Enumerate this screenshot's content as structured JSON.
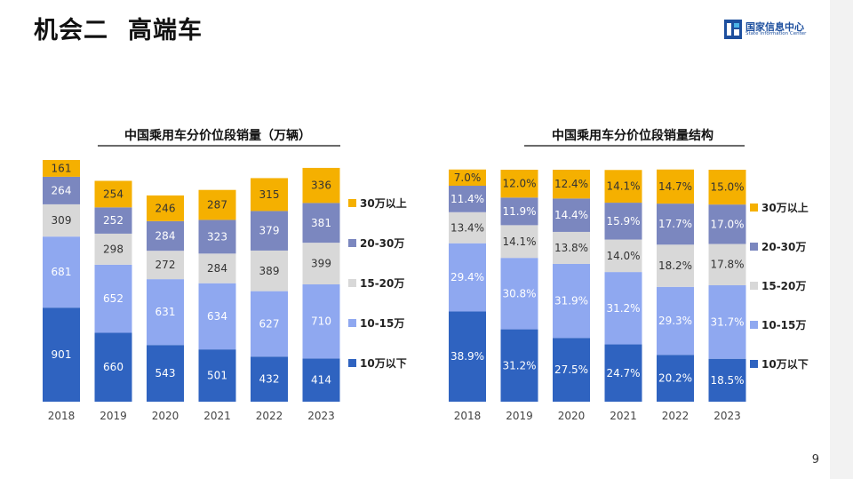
{
  "header": {
    "title_part1": "机会二",
    "title_part2": "高端车",
    "logo_org": "国家信息中心",
    "logo_org_en": "State Information Center",
    "page_number": "9"
  },
  "colors": {
    "10万以下": "#2f63c0",
    "10-15万": "#8fa8f0",
    "15-20万": "#d8d8d8",
    "20-30万": "#7b87bf",
    "30万以上": "#f5b000"
  },
  "chart_data": [
    {
      "type": "bar",
      "stacked": true,
      "title": "中国乘用车分价位段销量（万辆）",
      "categories": [
        "2018",
        "2019",
        "2020",
        "2021",
        "2022",
        "2023"
      ],
      "series": [
        {
          "name": "10万以下",
          "values": [
            901,
            660,
            543,
            501,
            432,
            414
          ],
          "labels": [
            "901",
            "660",
            "543",
            "501",
            "432",
            "414"
          ]
        },
        {
          "name": "10-15万",
          "values": [
            681,
            652,
            631,
            634,
            627,
            710
          ],
          "labels": [
            "681",
            "652",
            "631",
            "634",
            "627",
            "710"
          ]
        },
        {
          "name": "15-20万",
          "values": [
            309,
            298,
            272,
            284,
            389,
            399
          ],
          "labels": [
            "309",
            "298",
            "272",
            "284",
            "389",
            "399"
          ]
        },
        {
          "name": "20-30万",
          "values": [
            264,
            252,
            284,
            323,
            379,
            381
          ],
          "labels": [
            "264",
            "252",
            "284",
            "323",
            "379",
            "381"
          ]
        },
        {
          "name": "30万以上",
          "values": [
            161,
            254,
            246,
            287,
            315,
            336
          ],
          "labels": [
            "161",
            "254",
            "246",
            "287",
            "315",
            "336"
          ]
        }
      ],
      "legend": [
        "30万以上",
        "20-30万",
        "15-20万",
        "10-15万",
        "10万以下"
      ],
      "legend_position": "right",
      "ylim": [
        0,
        2316
      ]
    },
    {
      "type": "bar",
      "stacked": true,
      "title": "中国乘用车分价位段销量结构",
      "categories": [
        "2018",
        "2019",
        "2020",
        "2021",
        "2022",
        "2023"
      ],
      "series": [
        {
          "name": "10万以下",
          "values": [
            38.9,
            31.2,
            27.5,
            24.7,
            20.2,
            18.5
          ],
          "labels": [
            "38.9%",
            "31.2%",
            "27.5%",
            "24.7%",
            "20.2%",
            "18.5%"
          ]
        },
        {
          "name": "10-15万",
          "values": [
            29.4,
            30.8,
            31.9,
            31.2,
            29.3,
            31.7
          ],
          "labels": [
            "29.4%",
            "30.8%",
            "31.9%",
            "31.2%",
            "29.3%",
            "31.7%"
          ]
        },
        {
          "name": "15-20万",
          "values": [
            13.4,
            14.1,
            13.8,
            14.0,
            18.2,
            17.8
          ],
          "labels": [
            "13.4%",
            "14.1%",
            "13.8%",
            "14.0%",
            "18.2%",
            "17.8%"
          ]
        },
        {
          "name": "20-30万",
          "values": [
            11.4,
            11.9,
            14.4,
            15.9,
            17.7,
            17.0
          ],
          "labels": [
            "11.4%",
            "11.9%",
            "14.4%",
            "15.9%",
            "17.7%",
            "17.0%"
          ]
        },
        {
          "name": "30万以上",
          "values": [
            7.0,
            12.0,
            12.4,
            14.1,
            14.7,
            15.0
          ],
          "labels": [
            "7.0%",
            "12.0%",
            "12.4%",
            "14.1%",
            "14.7%",
            "15.0%"
          ]
        }
      ],
      "legend": [
        "30万以上",
        "20-30万",
        "15-20万",
        "10-15万",
        "10万以下"
      ],
      "legend_position": "right",
      "ylim": [
        0,
        100
      ]
    }
  ]
}
